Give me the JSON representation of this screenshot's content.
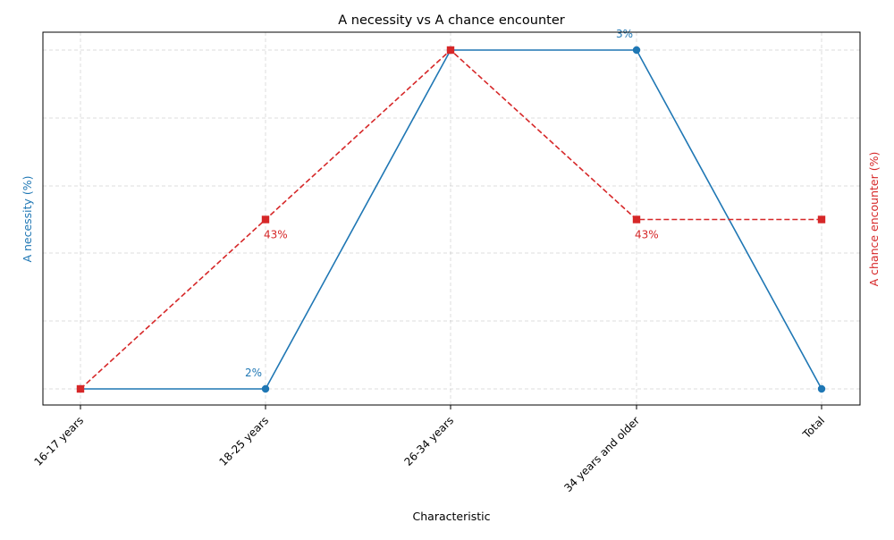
{
  "chart_data": {
    "type": "line",
    "title": "A necessity vs A chance encounter",
    "xlabel": "Characteristic",
    "ylabel_left": "A necessity (%)",
    "ylabel_right": "A chance encounter (%)",
    "categories": [
      "16-17 years",
      "18-25 years",
      "26-34 years",
      "34 years and older",
      "Total"
    ],
    "grid": true,
    "series": [
      {
        "name": "A necessity (%)",
        "axis": "left",
        "color": "#1f77b4",
        "marker": "circle",
        "line_style": "solid",
        "values": [
          2,
          2,
          3,
          3,
          2
        ],
        "ylim": [
          1.95,
          3.05
        ],
        "labels": [
          {
            "index": 1,
            "text": "2%",
            "placement": "above-left"
          },
          {
            "index": 3,
            "text": "3%",
            "placement": "above-left"
          }
        ]
      },
      {
        "name": "A chance encounter (%)",
        "axis": "right",
        "color": "#d62728",
        "marker": "square",
        "line_style": "dashed",
        "values": [
          42,
          43,
          44,
          43,
          43
        ],
        "ylim": [
          41.95,
          44.05
        ],
        "labels": [
          {
            "index": 1,
            "text": "43%",
            "placement": "below-right"
          },
          {
            "index": 3,
            "text": "43%",
            "placement": "below-right"
          }
        ]
      }
    ]
  }
}
